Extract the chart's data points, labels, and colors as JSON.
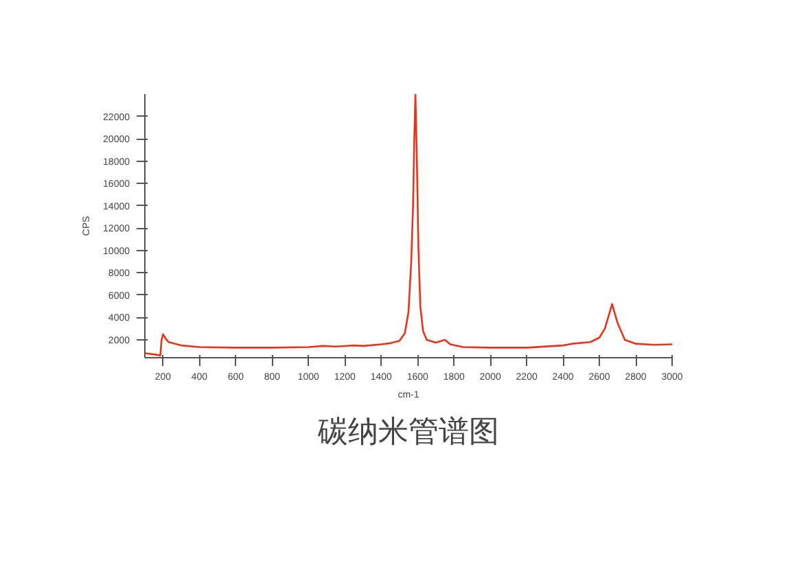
{
  "chart_data": {
    "type": "line",
    "title": "碳纳米管谱图",
    "xlabel": "cm-1",
    "ylabel": "CPS",
    "x": [
      100,
      150,
      185,
      192,
      200,
      215,
      230,
      300,
      400,
      600,
      800,
      1000,
      1080,
      1150,
      1250,
      1300,
      1400,
      1450,
      1500,
      1530,
      1550,
      1565,
      1575,
      1582,
      1588,
      1595,
      1605,
      1615,
      1630,
      1650,
      1700,
      1750,
      1780,
      1850,
      2000,
      2200,
      2400,
      2450,
      2550,
      2600,
      2630,
      2670,
      2700,
      2740,
      2800,
      2900,
      3000
    ],
    "series": [
      {
        "color": "#e8341c",
        "values": [
          800,
          700,
          600,
          2000,
          2500,
          2100,
          1800,
          1500,
          1350,
          1300,
          1300,
          1350,
          1450,
          1400,
          1500,
          1450,
          1600,
          1700,
          1900,
          2600,
          4500,
          9000,
          14000,
          20000,
          24000,
          19000,
          10000,
          5000,
          2800,
          2000,
          1750,
          2000,
          1600,
          1350,
          1300,
          1300,
          1500,
          1650,
          1800,
          2200,
          3000,
          5200,
          3500,
          2000,
          1650,
          1550,
          1600
        ]
      }
    ],
    "xlim": [
      100,
      3000
    ],
    "ylim": [
      400,
      24000
    ],
    "xticks": [
      200,
      400,
      600,
      800,
      1000,
      1200,
      1400,
      1600,
      1800,
      2000,
      2200,
      2400,
      2600,
      2800,
      3000
    ],
    "yticks": [
      2000,
      4000,
      6000,
      8000,
      10000,
      12000,
      14000,
      16000,
      18000,
      20000,
      22000
    ],
    "grid": false,
    "marker": "none",
    "line_style": "solid"
  }
}
